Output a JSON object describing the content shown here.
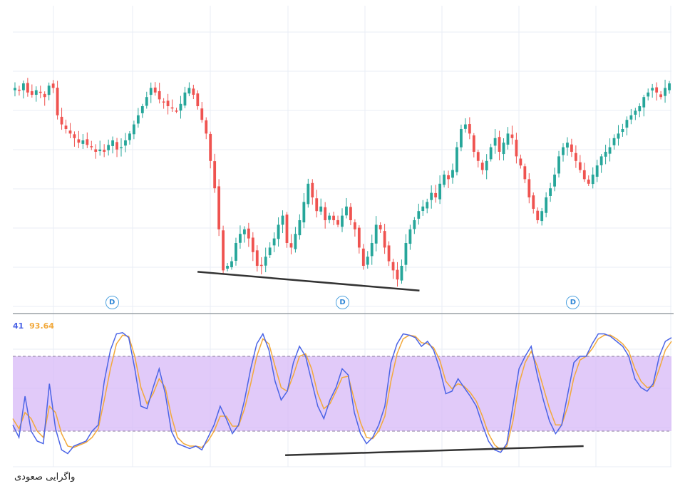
{
  "caption": "واگرایی صعودی",
  "oscillator_legend": {
    "k_label": "41",
    "d_value": "93.64"
  },
  "event_marker_label": "D",
  "colors": {
    "up": "#26a69a",
    "down": "#ef5350",
    "k_line": "#4b64e6",
    "d_line": "#f2a93b",
    "band": "#d7b8f7",
    "trendline": "#333333",
    "marker": "#2f86d6"
  },
  "chart_data": [
    {
      "type": "candlestick",
      "title": "",
      "x": "bar index",
      "ylim": [
        0,
        100
      ],
      "grid": true,
      "closes": [
        88,
        87,
        90,
        86,
        85,
        87,
        86,
        84,
        89,
        88,
        76,
        72,
        70,
        68,
        66,
        64,
        65,
        63,
        62,
        60,
        61,
        60,
        63,
        65,
        61,
        62,
        65,
        68,
        72,
        76,
        80,
        84,
        88,
        86,
        83,
        82,
        80,
        79,
        78,
        81,
        86,
        88,
        85,
        80,
        74,
        68,
        56,
        44,
        26,
        8,
        10,
        12,
        20,
        24,
        26,
        22,
        16,
        10,
        10,
        14,
        18,
        22,
        28,
        32,
        20,
        18,
        24,
        30,
        38,
        46,
        40,
        34,
        36,
        30,
        32,
        30,
        28,
        32,
        36,
        30,
        26,
        18,
        10,
        14,
        20,
        28,
        26,
        18,
        12,
        8,
        4,
        10,
        20,
        26,
        30,
        34,
        36,
        38,
        42,
        40,
        46,
        50,
        48,
        52,
        62,
        70,
        72,
        68,
        60,
        56,
        52,
        56,
        62,
        66,
        60,
        64,
        68,
        66,
        58,
        54,
        48,
        40,
        35,
        30,
        34,
        40,
        44,
        50,
        58,
        62,
        64,
        60,
        56,
        52,
        48,
        46,
        50,
        54,
        58,
        60,
        62,
        66,
        68,
        70,
        74,
        76,
        78,
        80,
        84,
        86,
        88,
        86,
        84,
        88,
        90
      ],
      "trendline_price": [
        [
          48,
          8
        ],
        [
          91,
          1
        ]
      ],
      "trendline_oscillator": [
        [
          47,
          3
        ],
        [
          93,
          8
        ]
      ],
      "oscillator": {
        "upper_band": 80,
        "lower_band": 20,
        "k": [
          25,
          15,
          48,
          20,
          12,
          10,
          58,
          22,
          5,
          2,
          8,
          10,
          12,
          20,
          25,
          60,
          85,
          98,
          99,
          95,
          70,
          40,
          38,
          55,
          70,
          50,
          20,
          10,
          8,
          6,
          8,
          5,
          15,
          25,
          40,
          30,
          18,
          25,
          45,
          70,
          90,
          98,
          85,
          60,
          45,
          52,
          75,
          88,
          80,
          60,
          40,
          30,
          45,
          55,
          70,
          65,
          35,
          18,
          10,
          15,
          25,
          40,
          75,
          90,
          98,
          97,
          95,
          88,
          92,
          85,
          70,
          50,
          52,
          62,
          55,
          48,
          40,
          25,
          12,
          5,
          3,
          10,
          40,
          70,
          80,
          88,
          65,
          45,
          28,
          18,
          25,
          50,
          75,
          80,
          80,
          90,
          98,
          98,
          96,
          92,
          88,
          80,
          62,
          55,
          52,
          58,
          80,
          92,
          95
        ],
        "d": [
          30,
          22,
          35,
          30,
          20,
          15,
          40,
          35,
          18,
          8,
          7,
          9,
          11,
          15,
          22,
          45,
          70,
          90,
          97,
          96,
          80,
          55,
          42,
          50,
          62,
          55,
          32,
          15,
          10,
          8,
          8,
          7,
          12,
          20,
          32,
          32,
          24,
          24,
          38,
          58,
          80,
          94,
          90,
          72,
          55,
          52,
          65,
          80,
          82,
          70,
          50,
          38,
          42,
          52,
          63,
          64,
          45,
          27,
          15,
          14,
          20,
          32,
          60,
          82,
          94,
          97,
          96,
          91,
          90,
          87,
          77,
          60,
          54,
          58,
          56,
          51,
          44,
          32,
          18,
          9,
          5,
          8,
          28,
          58,
          75,
          84,
          72,
          55,
          38,
          25,
          25,
          40,
          63,
          77,
          80,
          86,
          94,
          97,
          97,
          94,
          90,
          84,
          70,
          60,
          55,
          56,
          70,
          85,
          92
        ]
      },
      "event_markers": [
        15,
        50,
        85
      ]
    }
  ]
}
